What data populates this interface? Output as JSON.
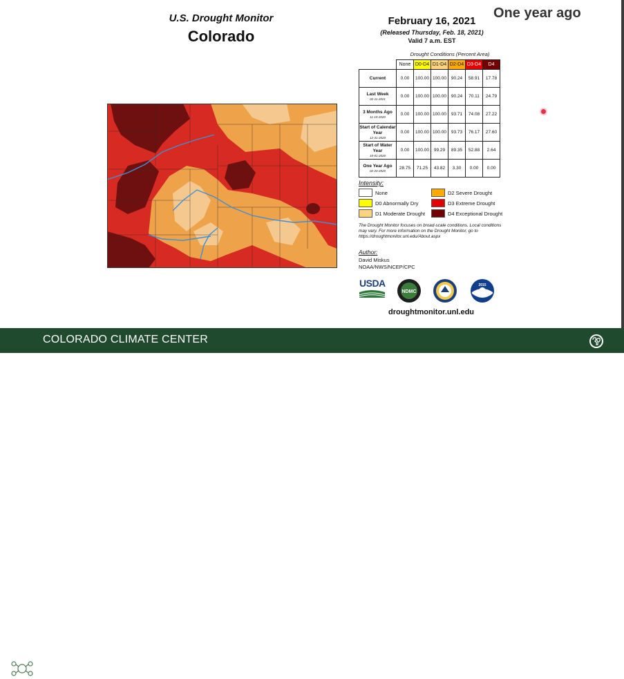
{
  "header": {
    "title_top": "U.S. Drought Monitor",
    "title_state": "Colorado",
    "date": "February 16, 2021",
    "released": "(Released Thursday, Feb. 18, 2021)",
    "valid": "Valid 7 a.m. EST",
    "overlay_label": "One year ago"
  },
  "table": {
    "caption": "Drought Conditions (Percent Area)",
    "columns": [
      "None",
      "D0-D4",
      "D1-D4",
      "D2-D4",
      "D3-D4",
      "D4"
    ],
    "column_colors": [
      "#ffffff",
      "#ffff00",
      "#fcd37f",
      "#ffaa00",
      "#e60000",
      "#730000"
    ],
    "rows": [
      {
        "label": "Current",
        "sub": "",
        "values": [
          "0.00",
          "100.00",
          "100.00",
          "90.24",
          "58.91",
          "17.78"
        ]
      },
      {
        "label": "Last Week",
        "sub": "02-11-2021",
        "values": [
          "0.00",
          "100.00",
          "100.00",
          "90.24",
          "70.11",
          "24.79"
        ]
      },
      {
        "label": "3 Months Ago",
        "sub": "11-19-2020",
        "values": [
          "0.00",
          "100.00",
          "100.00",
          "93.71",
          "74.08",
          "27.22"
        ]
      },
      {
        "label": "Start of Calendar Year",
        "sub": "12-31-2020",
        "values": [
          "0.00",
          "100.00",
          "100.00",
          "93.73",
          "76.17",
          "27.60"
        ]
      },
      {
        "label": "Start of Water Year",
        "sub": "10-01-2020",
        "values": [
          "0.00",
          "100.00",
          "99.29",
          "89.35",
          "52.88",
          "2.64"
        ]
      },
      {
        "label": "One Year Ago",
        "sub": "02-20-2020",
        "values": [
          "28.75",
          "71.25",
          "43.82",
          "3.30",
          "0.00",
          "0.00"
        ]
      }
    ]
  },
  "intensity": {
    "title": "Intensity:",
    "items": [
      {
        "label": "None",
        "color": "#ffffff"
      },
      {
        "label": "D0 Abnormally Dry",
        "color": "#ffff00"
      },
      {
        "label": "D1 Moderate Drought",
        "color": "#fcd37f"
      },
      {
        "label": "D2 Severe Drought",
        "color": "#ffaa00"
      },
      {
        "label": "D3 Extreme Drought",
        "color": "#e60000"
      },
      {
        "label": "D4 Exceptional Drought",
        "color": "#730000"
      }
    ]
  },
  "note": "The Drought Monitor focuses on broad-scale conditions. Local conditions may vary. For more information on the Drought Monitor, go to https://droughtmonitor.unl.edu/About.aspx",
  "author": {
    "title": "Author:",
    "name": "David Miskus",
    "org": "NOAA/NWS/NCEP/CPC"
  },
  "logos": {
    "usda": "USDA",
    "ndmc": "NDMC",
    "noaa_year": "2015"
  },
  "url": "droughtmonitor.unl.edu",
  "footer": {
    "title": "COLORADO CLIMATE CENTER"
  },
  "colors": {
    "footer_bg": "#1f4a2e",
    "d1": "#f5c890",
    "d2": "#eea24a",
    "d3": "#d72a22",
    "d4": "#6e1010",
    "river": "#3f8fd4"
  }
}
